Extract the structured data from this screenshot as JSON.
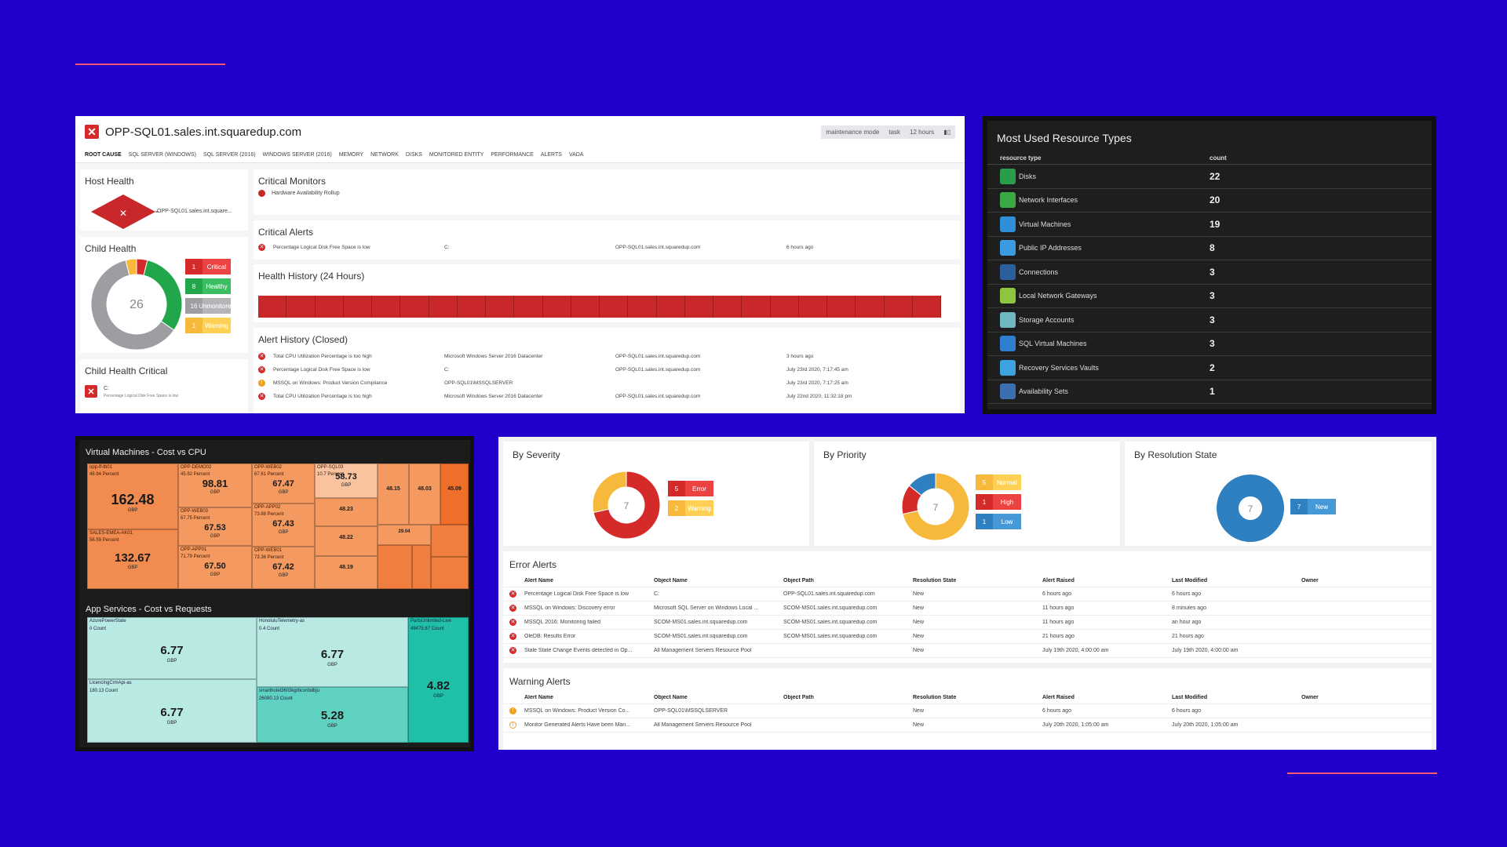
{
  "colors": {
    "background": "#2200cc",
    "accent": "#ff5a6e",
    "critical": "#d42a2a",
    "healthy": "#22a64a",
    "unmonitored": "#9e9ea2",
    "warning": "#f6b93b",
    "blue": "#2f80c0"
  },
  "sql": {
    "title": "OPP-SQL01.sales.int.squaredup.com",
    "controls": [
      "maintenance mode",
      "task",
      "12 hours"
    ],
    "tabs": [
      "ROOT CAUSE",
      "SQL SERVER (WINDOWS)",
      "SQL SERVER (2016)",
      "WINDOWS SERVER (2016)",
      "MEMORY",
      "NETWORK",
      "DISKS",
      "MONITORED ENTITY",
      "PERFORMANCE",
      "ALERTS",
      "VADA"
    ],
    "host_health": {
      "title": "Host Health",
      "label": "OPP-SQL01.sales.int.square..."
    },
    "child_health": {
      "title": "Child Health",
      "total": "26",
      "items": [
        {
          "n": "1",
          "label": "Critical",
          "value": 1,
          "color": "#d42a2a"
        },
        {
          "n": "8",
          "label": "Healthy",
          "value": 8,
          "color": "#22a64a"
        },
        {
          "n": "16",
          "label": "Unmonitored",
          "value": 16,
          "color": "#9e9ea2"
        },
        {
          "n": "1",
          "label": "Warning",
          "value": 1,
          "color": "#f6b93b"
        }
      ]
    },
    "child_health_critical": {
      "title": "Child Health Critical",
      "item": "C:",
      "sub": "Percentage Logical Disk Free Space is low"
    },
    "critical_monitors": {
      "title": "Critical Monitors",
      "item": "Hardware Availability Rollup"
    },
    "critical_alerts": {
      "title": "Critical Alerts",
      "rows": [
        [
          "Percentage Logical Disk Free Space is low",
          "C:",
          "OPP-SQL01.sales.int.squaredup.com",
          "6 hours ago"
        ]
      ]
    },
    "health_history": {
      "title": "Health History (24 Hours)",
      "segments": 24
    },
    "alert_history": {
      "title": "Alert History (Closed)",
      "rows": [
        {
          "icon": "error",
          "cells": [
            "Total CPU Utilization Percentage is too high",
            "Microsoft Windows Server 2016 Datacenter",
            "OPP-SQL01.sales.int.squaredup.com",
            "3 hours ago"
          ]
        },
        {
          "icon": "error",
          "cells": [
            "Percentage Logical Disk Free Space is low",
            "C:",
            "OPP-SQL01.sales.int.squaredup.com",
            "July 23rd 2020, 7:17:45 am"
          ]
        },
        {
          "icon": "warning",
          "cells": [
            "MSSQL on Windows: Product Version Compliance",
            "OPP-SQL01\\MSSQLSERVER",
            "",
            "July 23rd 2020, 7:17:25 am"
          ]
        },
        {
          "icon": "error",
          "cells": [
            "Total CPU Utilization Percentage is too high",
            "Microsoft Windows Server 2016 Datacenter",
            "OPP-SQL01.sales.int.squaredup.com",
            "July 22nd 2020, 11:32:18 pm"
          ]
        }
      ]
    }
  },
  "resources": {
    "title": "Most Used Resource Types",
    "col_type": "resource type",
    "col_count": "count",
    "rows": [
      {
        "name": "Disks",
        "count": "22",
        "color": "#2a9d4a"
      },
      {
        "name": "Network Interfaces",
        "count": "20",
        "color": "#3aa845"
      },
      {
        "name": "Virtual Machines",
        "count": "19",
        "color": "#2f8fd8"
      },
      {
        "name": "Public IP Addresses",
        "count": "8",
        "color": "#3b9be0"
      },
      {
        "name": "Connections",
        "count": "3",
        "color": "#2b5f9e"
      },
      {
        "name": "Local Network Gateways",
        "count": "3",
        "color": "#8cc63f"
      },
      {
        "name": "Storage Accounts",
        "count": "3",
        "color": "#6fb8c4"
      },
      {
        "name": "SQL Virtual Machines",
        "count": "3",
        "color": "#2f7fd0"
      },
      {
        "name": "Recovery Services Vaults",
        "count": "2",
        "color": "#3aa3e0"
      },
      {
        "name": "Availability Sets",
        "count": "1",
        "color": "#3b6fb0"
      }
    ]
  },
  "vm_treemap": {
    "title": "Virtual Machines - Cost vs CPU",
    "cells": [
      {
        "name": "opp-ff-tb01",
        "sub": "48.94 Percent",
        "value": "162.48",
        "unit": "GBP"
      },
      {
        "name": "SALES-EMEA-AK01",
        "sub": "56.59 Percent",
        "value": "132.67",
        "unit": "GBP"
      },
      {
        "name": "OPP-DEMO02",
        "sub": "45.92 Percent",
        "value": "98.81",
        "unit": "GBP"
      },
      {
        "name": "OPP-WEB03",
        "sub": "67.75 Percent",
        "value": "67.53",
        "unit": "GBP"
      },
      {
        "name": "OPP-APP01",
        "sub": "71.79 Percent",
        "value": "67.50",
        "unit": "GBP"
      },
      {
        "name": "OPP-WEB02",
        "sub": "67.61 Percent",
        "value": "67.47",
        "unit": "GBP"
      },
      {
        "name": "OPP-APP02",
        "sub": "73.88 Percent",
        "value": "67.43",
        "unit": "GBP"
      },
      {
        "name": "OPP-WEB01",
        "sub": "73.38 Percent",
        "value": "67.42",
        "unit": "GBP"
      },
      {
        "name": "OPP-SQL03",
        "sub": "10.7 Percent",
        "value": "58.73",
        "unit": "GBP"
      },
      {
        "name": "",
        "sub": "",
        "value": "48.23",
        "unit": "GBP"
      },
      {
        "name": "",
        "sub": "",
        "value": "48.22",
        "unit": "GBP"
      },
      {
        "name": "",
        "sub": "",
        "value": "48.19",
        "unit": "GBP"
      },
      {
        "name": "",
        "sub": "",
        "value": "48.15",
        "unit": "GBP"
      },
      {
        "name": "",
        "sub": "",
        "value": "48.03",
        "unit": "GBP"
      },
      {
        "name": "",
        "sub": "",
        "value": "45.09",
        "unit": "GBP"
      },
      {
        "name": "",
        "sub": "",
        "value": "29.04",
        "unit": "GBP"
      }
    ]
  },
  "app_treemap": {
    "title": "App Services - Cost vs Requests",
    "cells": [
      {
        "name": "AzurePowerState",
        "sub": "0 Count",
        "value": "6.77",
        "unit": "GBP"
      },
      {
        "name": "LicencingCrmApi-as",
        "sub": "180.13 Count",
        "value": "6.77",
        "unit": "GBP"
      },
      {
        "name": "HonoluluTelemetry-as",
        "sub": "0.4 Count",
        "value": "6.77",
        "unit": "GBP"
      },
      {
        "name": "smarthotel3603kgrbcxnbdbju",
        "sub": "26080.13 Count",
        "value": "5.28",
        "unit": "GBP"
      },
      {
        "name": "PartsUnlimited-Live",
        "sub": "49475.67 Count",
        "value": "4.82",
        "unit": "GBP"
      }
    ]
  },
  "severity": {
    "by_severity": {
      "title": "By Severity",
      "total": "7",
      "items": [
        {
          "n": "5",
          "label": "Error",
          "value": 5,
          "color": "#d42a2a"
        },
        {
          "n": "2",
          "label": "Warning",
          "value": 2,
          "color": "#f6b93b"
        }
      ]
    },
    "by_priority": {
      "title": "By Priority",
      "total": "7",
      "items": [
        {
          "n": "5",
          "label": "Normal",
          "value": 5,
          "color": "#f6b93b"
        },
        {
          "n": "1",
          "label": "High",
          "value": 1,
          "color": "#d42a2a"
        },
        {
          "n": "1",
          "label": "Low",
          "value": 1,
          "color": "#2f80c0"
        }
      ]
    },
    "by_resolution": {
      "title": "By Resolution State",
      "total": "7",
      "items": [
        {
          "n": "7",
          "label": "New",
          "value": 7,
          "color": "#2f80c0"
        }
      ]
    }
  },
  "error_alerts": {
    "title": "Error Alerts",
    "columns": [
      "Alert Name",
      "Object Name",
      "Object Path",
      "Resolution State",
      "Alert Raised",
      "Last Modified",
      "Owner"
    ],
    "rows": [
      [
        "Percentage Logical Disk Free Space is low",
        "C:",
        "OPP-SQL01.sales.int.squaredup.com",
        "New",
        "6 hours ago",
        "6 hours ago",
        ""
      ],
      [
        "MSSQL on Windows: Discovery error",
        "Microsoft SQL Server on Windows Local ...",
        "SCOM-MS01.sales.int.squaredup.com",
        "New",
        "11 hours ago",
        "8 minutes ago",
        ""
      ],
      [
        "MSSQL 2016: Monitoring failed",
        "SCOM-MS01.sales.int.squaredup.com",
        "SCOM-MS01.sales.int.squaredup.com",
        "New",
        "11 hours ago",
        "an hour ago",
        ""
      ],
      [
        "OleDB: Results Error",
        "SCOM-MS01.sales.int.squaredup.com",
        "SCOM-MS01.sales.int.squaredup.com",
        "New",
        "21 hours ago",
        "21 hours ago",
        ""
      ],
      [
        "Stale State Change Events detected in Op...",
        "All Management Servers Resource Pool",
        "",
        "New",
        "July 19th 2020, 4:00:00 am",
        "July 19th 2020, 4:00:00 am",
        ""
      ]
    ]
  },
  "warning_alerts": {
    "title": "Warning Alerts",
    "columns": [
      "Alert Name",
      "Object Name",
      "Object Path",
      "Resolution State",
      "Alert Raised",
      "Last Modified",
      "Owner"
    ],
    "rows": [
      [
        "MSSQL on Windows: Product Version Co...",
        "OPP-SQL01\\MSSQLSERVER",
        "",
        "New",
        "6 hours ago",
        "6 hours ago",
        ""
      ],
      [
        "Monitor Generated Alerts Have been Man...",
        "All Management Servers Resource Pool",
        "",
        "New",
        "July 20th 2020, 1:05:00 am",
        "July 20th 2020, 1:05:00 am",
        ""
      ]
    ]
  }
}
